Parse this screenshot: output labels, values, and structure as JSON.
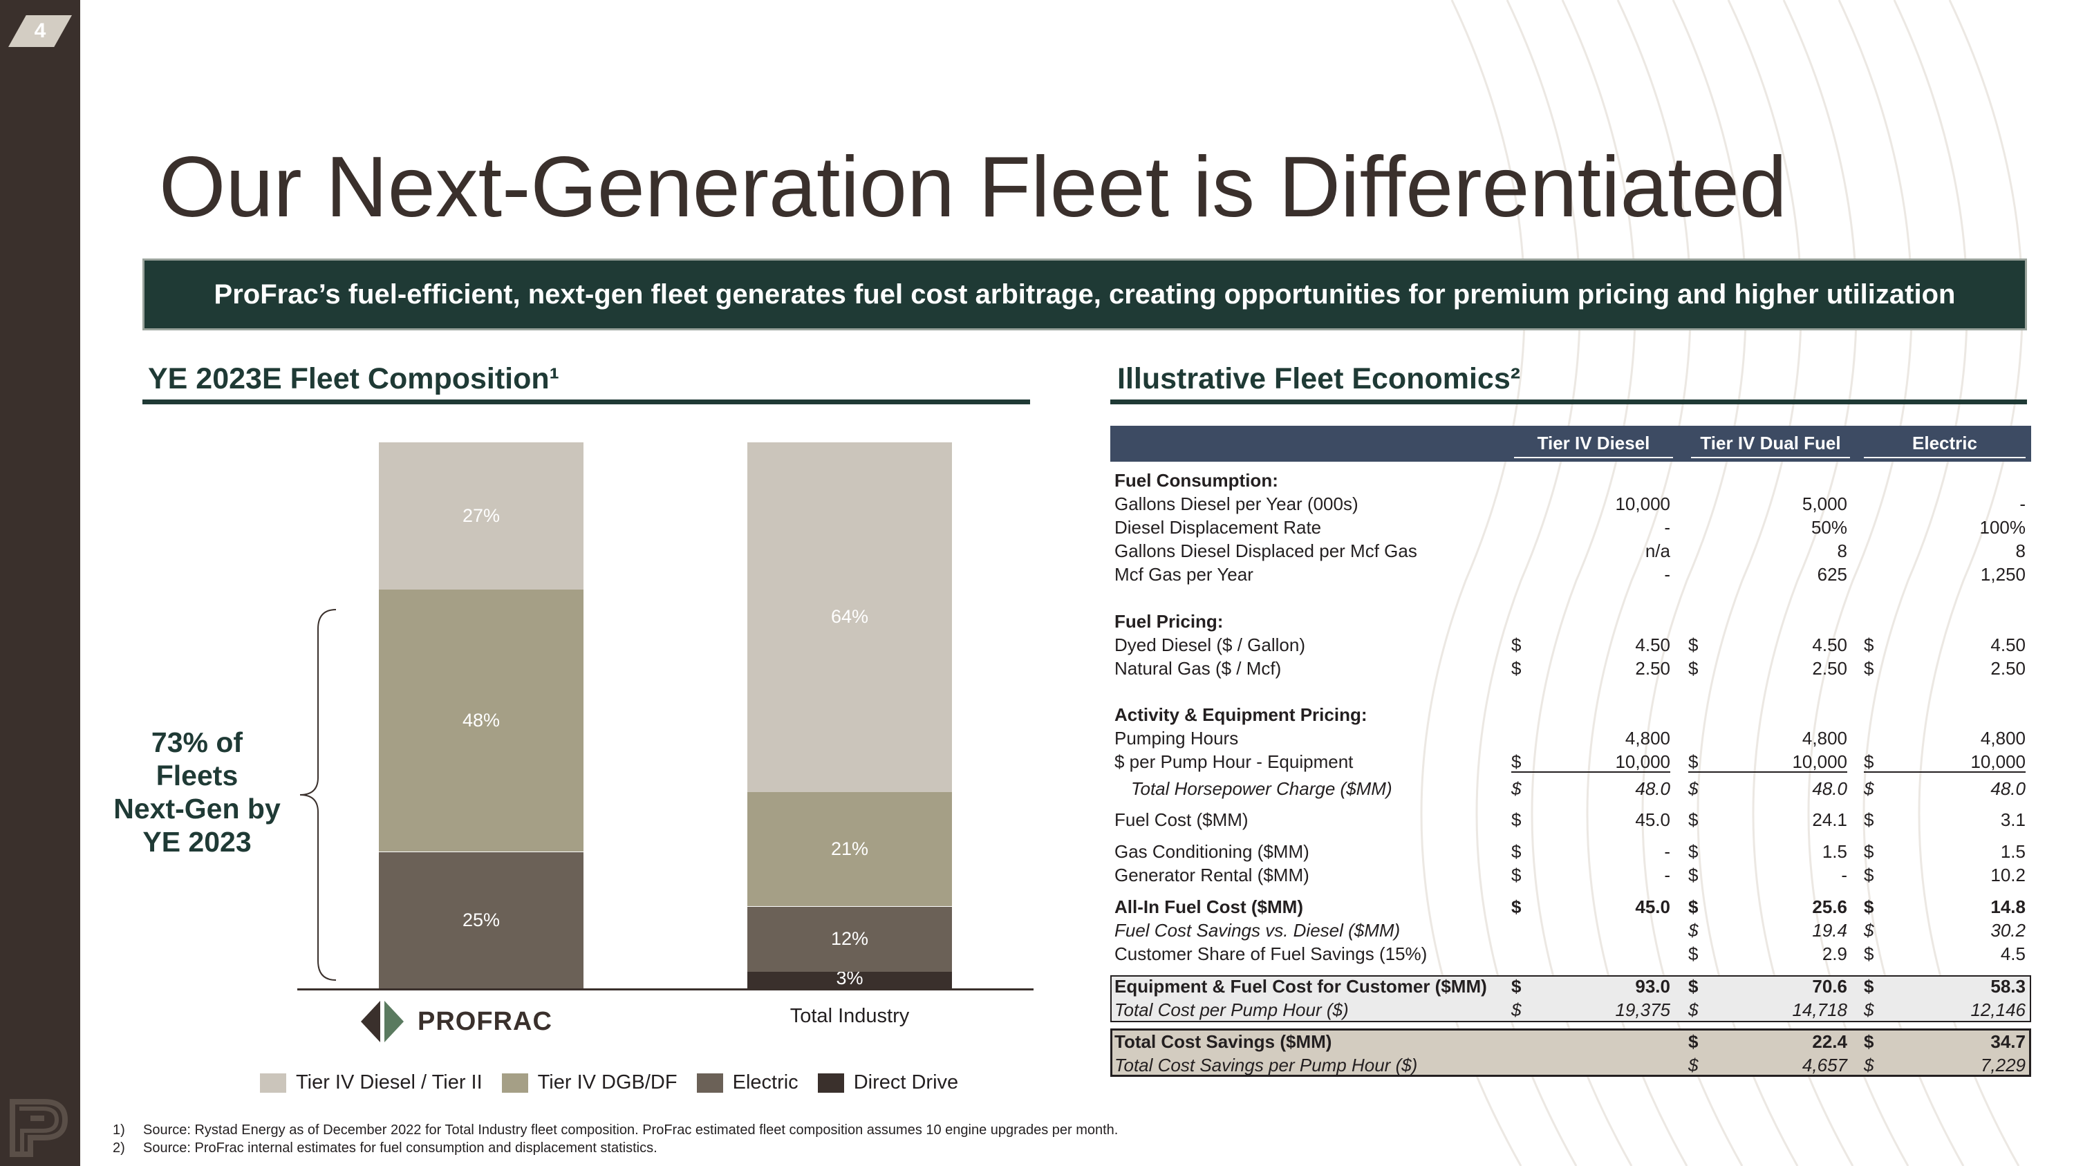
{
  "page_number": "4",
  "title": "Our Next-Generation Fleet is Differentiated",
  "banner": "ProFrac’s fuel-efficient, next-gen fleet generates fuel cost arbitrage, creating opportunities for premium pricing and higher utilization",
  "left_section": {
    "title": "YE 2023E Fleet Composition¹",
    "brace_label": [
      "73% of",
      "Fleets",
      "Next-Gen by",
      "YE 2023"
    ],
    "logo_text": "PROFRAC",
    "colors": {
      "tier4_diesel": "#cbc5bb",
      "tier4_dgb": "#a59f86",
      "electric": "#6b6157",
      "direct_drive": "#3a302c"
    }
  },
  "chart_data": {
    "type": "bar",
    "stacked": true,
    "categories": [
      "ProFrac",
      "Total Industry"
    ],
    "series": [
      {
        "name": "Direct Drive",
        "values": [
          0,
          3
        ],
        "labels": [
          "",
          "3%"
        ],
        "color": "#3a302c"
      },
      {
        "name": "Electric",
        "values": [
          25,
          12
        ],
        "labels": [
          "25%",
          "12%"
        ],
        "color": "#6b6157"
      },
      {
        "name": "Tier IV DGB/DF",
        "values": [
          48,
          21
        ],
        "labels": [
          "48%",
          "21%"
        ],
        "color": "#a59f86"
      },
      {
        "name": "Tier IV Diesel / Tier II",
        "values": [
          27,
          64
        ],
        "labels": [
          "27%",
          "64%"
        ],
        "color": "#cbc5bb"
      }
    ],
    "category_labels": [
      "",
      "Total Industry"
    ],
    "ylim": [
      0,
      100
    ],
    "legend": [
      "Tier IV Diesel / Tier II",
      "Tier IV DGB/DF",
      "Electric",
      "Direct Drive"
    ]
  },
  "right_section": {
    "title": "Illustrative Fleet Economics²",
    "columns": [
      "Tier IV Diesel",
      "Tier IV Dual Fuel",
      "Electric"
    ],
    "rows": [
      {
        "label": "Fuel Consumption:",
        "style": "b",
        "vals": [
          [
            "",
            ""
          ],
          [
            "",
            ""
          ],
          [
            "",
            ""
          ]
        ]
      },
      {
        "label": "Gallons Diesel per Year (000s)",
        "style": "",
        "vals": [
          [
            "",
            "10,000"
          ],
          [
            "",
            "5,000"
          ],
          [
            "",
            "-"
          ]
        ]
      },
      {
        "label": "Diesel Displacement Rate",
        "style": "",
        "vals": [
          [
            "",
            "-"
          ],
          [
            "",
            "50%"
          ],
          [
            "",
            "100%"
          ]
        ]
      },
      {
        "label": "Gallons Diesel Displaced per Mcf Gas",
        "style": "",
        "vals": [
          [
            "",
            "n/a"
          ],
          [
            "",
            "8"
          ],
          [
            "",
            "8"
          ]
        ]
      },
      {
        "label": "Mcf Gas per Year",
        "style": "",
        "vals": [
          [
            "",
            "-"
          ],
          [
            "",
            "625"
          ],
          [
            "",
            "1,250"
          ]
        ]
      },
      {
        "label": "Fuel Pricing:",
        "style": "b",
        "vals": [
          [
            "",
            ""
          ],
          [
            "",
            ""
          ],
          [
            "",
            ""
          ]
        ]
      },
      {
        "label": "Dyed Diesel ($ / Gallon)",
        "style": "",
        "vals": [
          [
            "$",
            "4.50"
          ],
          [
            "$",
            "4.50"
          ],
          [
            "$",
            "4.50"
          ]
        ]
      },
      {
        "label": "Natural Gas ($ / Mcf)",
        "style": "",
        "vals": [
          [
            "$",
            "2.50"
          ],
          [
            "$",
            "2.50"
          ],
          [
            "$",
            "2.50"
          ]
        ]
      },
      {
        "label": "Activity & Equipment Pricing:",
        "style": "b",
        "vals": [
          [
            "",
            ""
          ],
          [
            "",
            ""
          ],
          [
            "",
            ""
          ]
        ]
      },
      {
        "label": "Pumping Hours",
        "style": "",
        "vals": [
          [
            "",
            "4,800"
          ],
          [
            "",
            "4,800"
          ],
          [
            "",
            "4,800"
          ]
        ]
      },
      {
        "label": "$ per Pump Hour - Equipment",
        "style": "",
        "vals": [
          [
            "$",
            "10,000"
          ],
          [
            "$",
            "10,000"
          ],
          [
            "$",
            "10,000"
          ]
        ]
      },
      {
        "label": "Total Horsepower Charge ($MM)",
        "style": "i",
        "indent": true,
        "vals": [
          [
            "$",
            "48.0"
          ],
          [
            "$",
            "48.0"
          ],
          [
            "$",
            "48.0"
          ]
        ]
      },
      {
        "label": "Fuel Cost ($MM)",
        "style": "",
        "vals": [
          [
            "$",
            "45.0"
          ],
          [
            "$",
            "24.1"
          ],
          [
            "$",
            "3.1"
          ]
        ]
      },
      {
        "label": "Gas Conditioning ($MM)",
        "style": "",
        "vals": [
          [
            "$",
            "-"
          ],
          [
            "$",
            "1.5"
          ],
          [
            "$",
            "1.5"
          ]
        ]
      },
      {
        "label": "Generator Rental ($MM)",
        "style": "",
        "vals": [
          [
            "$",
            "-"
          ],
          [
            "$",
            "-"
          ],
          [
            "$",
            "10.2"
          ]
        ]
      },
      {
        "label": "All-In Fuel Cost ($MM)",
        "style": "b",
        "vals": [
          [
            "$",
            "45.0"
          ],
          [
            "$",
            "25.6"
          ],
          [
            "$",
            "14.8"
          ]
        ]
      },
      {
        "label": "Fuel Cost Savings vs. Diesel ($MM)",
        "style": "i",
        "vals": [
          [
            "",
            ""
          ],
          [
            "$",
            "19.4"
          ],
          [
            "$",
            "30.2"
          ]
        ]
      },
      {
        "label": "Customer Share of Fuel Savings (15%)",
        "style": "",
        "vals": [
          [
            "",
            ""
          ],
          [
            "$",
            "2.9"
          ],
          [
            "$",
            "4.5"
          ]
        ]
      },
      {
        "label": "Equipment & Fuel Cost for Customer ($MM)",
        "style": "b",
        "vals": [
          [
            "$",
            "93.0"
          ],
          [
            "$",
            "70.6"
          ],
          [
            "$",
            "58.3"
          ]
        ]
      },
      {
        "label": "Total Cost per Pump Hour ($)",
        "style": "i",
        "vals": [
          [
            "$",
            "19,375"
          ],
          [
            "$",
            "14,718"
          ],
          [
            "$",
            "12,146"
          ]
        ]
      },
      {
        "label": "Total Cost Savings ($MM)",
        "style": "b",
        "vals": [
          [
            "",
            ""
          ],
          [
            "$",
            "22.4"
          ],
          [
            "$",
            "34.7"
          ]
        ]
      },
      {
        "label": "Total Cost Savings per Pump Hour ($)",
        "style": "i",
        "vals": [
          [
            "",
            ""
          ],
          [
            "$",
            "4,657"
          ],
          [
            "$",
            "7,229"
          ]
        ]
      }
    ]
  },
  "footnotes": [
    {
      "n": "1)",
      "text": "Source: Rystad Energy as of December 2022 for Total Industry fleet composition.  ProFrac estimated fleet composition assumes 10 engine upgrades per month."
    },
    {
      "n": "2)",
      "text": "Source: ProFrac internal estimates for fuel consumption and displacement statistics."
    }
  ]
}
